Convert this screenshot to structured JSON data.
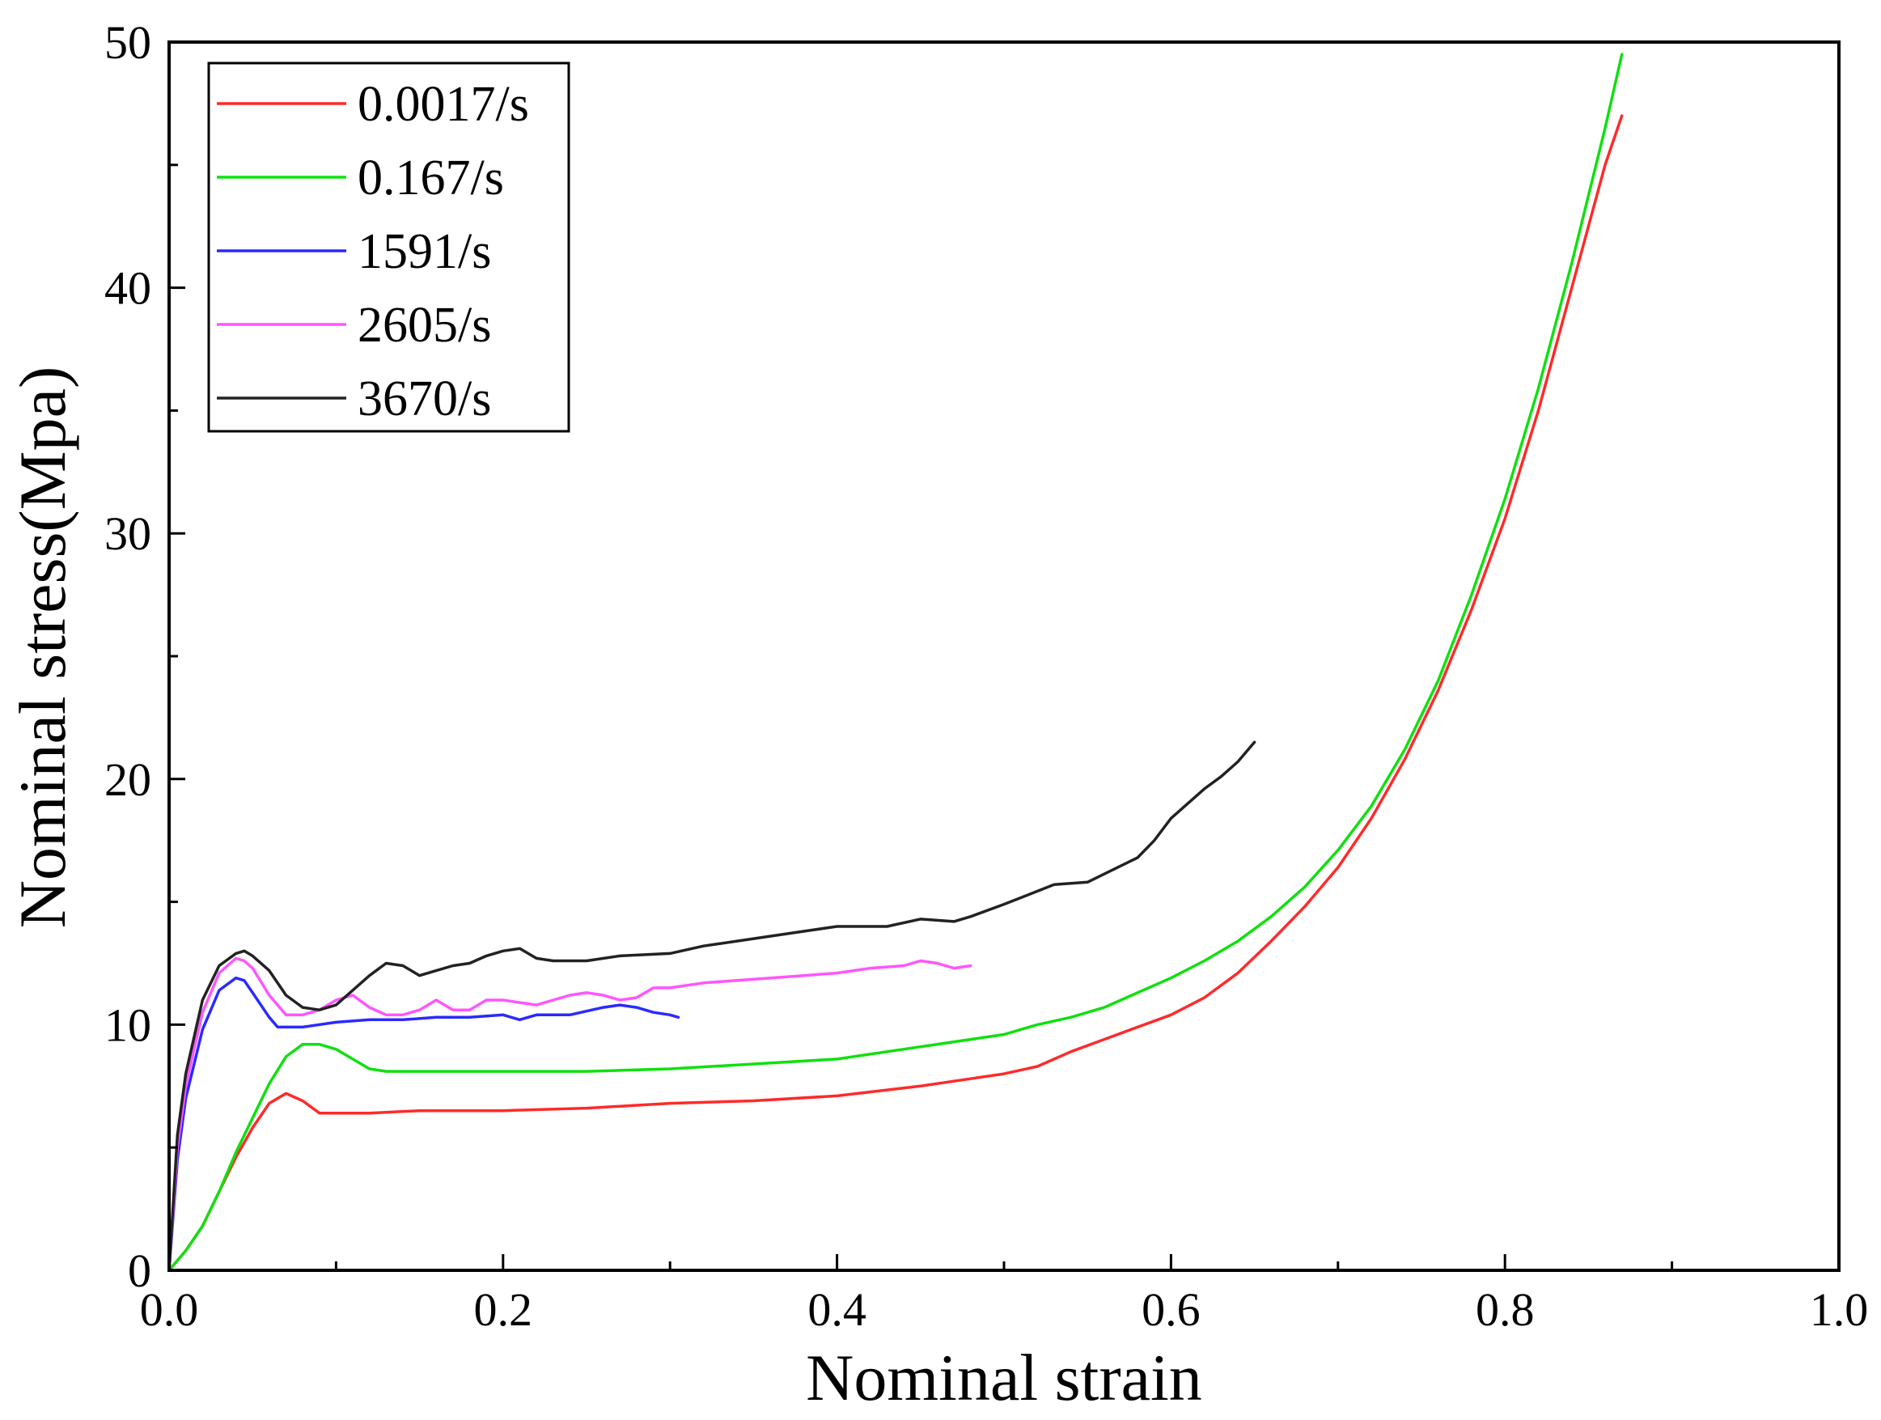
{
  "chart_data": {
    "type": "line",
    "title": "",
    "xlabel": "Nominal strain",
    "ylabel": "Nominal stress(Mpa)",
    "xlim": [
      0,
      1.0
    ],
    "ylim": [
      0,
      50
    ],
    "xticks": [
      0.0,
      0.2,
      0.4,
      0.6,
      0.8,
      1.0
    ],
    "xtick_labels": [
      "0.0",
      "0.2",
      "0.4",
      "0.6",
      "0.8",
      "1.0"
    ],
    "yticks": [
      0,
      10,
      20,
      30,
      40,
      50
    ],
    "ytick_labels": [
      "0",
      "10",
      "20",
      "30",
      "40",
      "50"
    ],
    "grid": false,
    "legend_position": "top-left",
    "series": [
      {
        "name": "0.0017/s",
        "color": "#ff2a2a",
        "x": [
          0,
          0.01,
          0.02,
          0.03,
          0.04,
          0.05,
          0.06,
          0.07,
          0.08,
          0.09,
          0.1,
          0.12,
          0.15,
          0.2,
          0.25,
          0.3,
          0.35,
          0.4,
          0.45,
          0.48,
          0.5,
          0.52,
          0.54,
          0.56,
          0.58,
          0.6,
          0.62,
          0.64,
          0.66,
          0.68,
          0.7,
          0.72,
          0.74,
          0.76,
          0.78,
          0.8,
          0.82,
          0.84,
          0.86,
          0.87
        ],
        "y": [
          0,
          0.8,
          1.8,
          3.2,
          4.6,
          5.8,
          6.8,
          7.2,
          6.9,
          6.4,
          6.4,
          6.4,
          6.5,
          6.5,
          6.6,
          6.8,
          6.9,
          7.1,
          7.5,
          7.8,
          8.0,
          8.3,
          8.9,
          9.4,
          9.9,
          10.4,
          11.1,
          12.1,
          13.4,
          14.8,
          16.4,
          18.4,
          20.8,
          23.6,
          26.9,
          30.6,
          35.0,
          40.0,
          45.0,
          47.0
        ]
      },
      {
        "name": "0.167/s",
        "color": "#10e010",
        "x": [
          0,
          0.01,
          0.02,
          0.03,
          0.04,
          0.05,
          0.06,
          0.07,
          0.08,
          0.09,
          0.1,
          0.11,
          0.12,
          0.13,
          0.15,
          0.2,
          0.25,
          0.3,
          0.35,
          0.4,
          0.45,
          0.48,
          0.5,
          0.52,
          0.54,
          0.56,
          0.58,
          0.6,
          0.62,
          0.64,
          0.66,
          0.68,
          0.7,
          0.72,
          0.74,
          0.76,
          0.78,
          0.8,
          0.82,
          0.84,
          0.86,
          0.87
        ],
        "y": [
          0,
          0.8,
          1.8,
          3.2,
          4.8,
          6.2,
          7.6,
          8.7,
          9.2,
          9.2,
          9.0,
          8.6,
          8.2,
          8.1,
          8.1,
          8.1,
          8.1,
          8.2,
          8.4,
          8.6,
          9.1,
          9.4,
          9.6,
          10.0,
          10.3,
          10.7,
          11.3,
          11.9,
          12.6,
          13.4,
          14.4,
          15.6,
          17.1,
          18.9,
          21.2,
          24.0,
          27.5,
          31.4,
          35.9,
          41.0,
          46.5,
          49.5
        ]
      },
      {
        "name": "1591/s",
        "color": "#2a2aff",
        "x": [
          0,
          0.005,
          0.01,
          0.02,
          0.03,
          0.04,
          0.045,
          0.05,
          0.06,
          0.065,
          0.07,
          0.08,
          0.1,
          0.12,
          0.14,
          0.16,
          0.18,
          0.2,
          0.21,
          0.22,
          0.24,
          0.26,
          0.27,
          0.28,
          0.29,
          0.3,
          0.305
        ],
        "y": [
          0,
          4.5,
          7.0,
          9.8,
          11.4,
          11.9,
          11.8,
          11.3,
          10.3,
          9.9,
          9.9,
          9.9,
          10.1,
          10.2,
          10.2,
          10.3,
          10.3,
          10.4,
          10.2,
          10.4,
          10.4,
          10.7,
          10.8,
          10.7,
          10.5,
          10.4,
          10.3
        ]
      },
      {
        "name": "2605/s",
        "color": "#ff55ff",
        "x": [
          0,
          0.005,
          0.01,
          0.02,
          0.03,
          0.04,
          0.045,
          0.05,
          0.06,
          0.07,
          0.08,
          0.09,
          0.1,
          0.11,
          0.12,
          0.13,
          0.14,
          0.15,
          0.16,
          0.17,
          0.18,
          0.19,
          0.2,
          0.21,
          0.22,
          0.23,
          0.24,
          0.25,
          0.26,
          0.27,
          0.28,
          0.29,
          0.3,
          0.32,
          0.34,
          0.36,
          0.38,
          0.4,
          0.42,
          0.44,
          0.45,
          0.46,
          0.47,
          0.48
        ],
        "y": [
          0,
          5.0,
          7.5,
          10.5,
          12.1,
          12.7,
          12.6,
          12.3,
          11.2,
          10.4,
          10.4,
          10.6,
          11.0,
          11.2,
          10.7,
          10.4,
          10.4,
          10.6,
          11.0,
          10.6,
          10.6,
          11.0,
          11.0,
          10.9,
          10.8,
          11.0,
          11.2,
          11.3,
          11.2,
          11.0,
          11.1,
          11.5,
          11.5,
          11.7,
          11.8,
          11.9,
          12.0,
          12.1,
          12.3,
          12.4,
          12.6,
          12.5,
          12.3,
          12.4
        ]
      },
      {
        "name": "3670/s",
        "color": "#222222",
        "x": [
          0,
          0.005,
          0.01,
          0.02,
          0.03,
          0.04,
          0.045,
          0.05,
          0.06,
          0.07,
          0.08,
          0.09,
          0.1,
          0.11,
          0.12,
          0.13,
          0.14,
          0.15,
          0.16,
          0.17,
          0.18,
          0.19,
          0.2,
          0.21,
          0.22,
          0.23,
          0.25,
          0.27,
          0.3,
          0.32,
          0.35,
          0.38,
          0.4,
          0.43,
          0.45,
          0.47,
          0.48,
          0.5,
          0.53,
          0.55,
          0.58,
          0.59,
          0.6,
          0.61,
          0.62,
          0.63,
          0.64,
          0.65
        ],
        "y": [
          0,
          5.5,
          8.0,
          11.0,
          12.4,
          12.9,
          13.0,
          12.8,
          12.2,
          11.2,
          10.7,
          10.6,
          10.8,
          11.4,
          12.0,
          12.5,
          12.4,
          12.0,
          12.2,
          12.4,
          12.5,
          12.8,
          13.0,
          13.1,
          12.7,
          12.6,
          12.6,
          12.8,
          12.9,
          13.2,
          13.5,
          13.8,
          14.0,
          14.0,
          14.3,
          14.2,
          14.4,
          14.9,
          15.7,
          15.8,
          16.8,
          17.5,
          18.4,
          19.0,
          19.6,
          20.1,
          20.7,
          21.5
        ]
      }
    ]
  }
}
